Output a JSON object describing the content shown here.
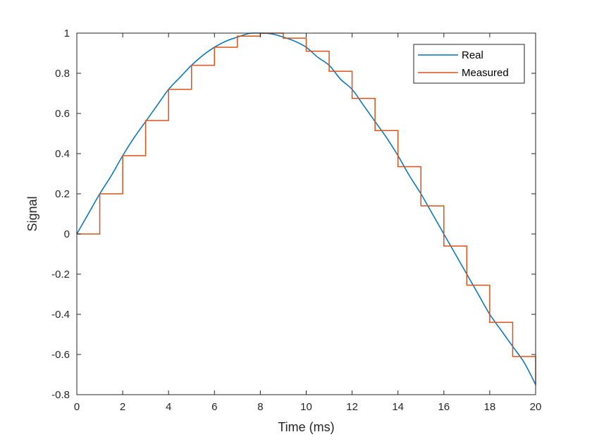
{
  "chart_data": {
    "type": "line",
    "title": "",
    "xlabel": "Time (ms)",
    "ylabel": "Signal",
    "xlim": [
      0,
      20
    ],
    "ylim": [
      -0.8,
      1
    ],
    "xticks": [
      0,
      2,
      4,
      6,
      8,
      10,
      12,
      14,
      16,
      18,
      20
    ],
    "xtick_labels": [
      "0",
      "2",
      "4",
      "6",
      "8",
      "10",
      "12",
      "14",
      "16",
      "18",
      "20"
    ],
    "yticks": [
      -0.8,
      -0.6,
      -0.4,
      -0.2,
      0,
      0.2,
      0.4,
      0.6,
      0.8,
      1
    ],
    "ytick_labels": [
      "-0.8",
      "-0.6",
      "-0.4",
      "-0.2",
      "0",
      "0.2",
      "0.4",
      "0.6",
      "0.8",
      "1"
    ],
    "grid": false,
    "legend_position": "top-right",
    "series": [
      {
        "name": "Real",
        "color": "#0072BD",
        "style": "smooth",
        "x": [
          0,
          0.5,
          1,
          1.5,
          2,
          2.5,
          3,
          3.5,
          4,
          4.5,
          5,
          5.5,
          6,
          6.5,
          7,
          7.5,
          8,
          8.5,
          9,
          9.5,
          10,
          10.5,
          11,
          11.5,
          12,
          12.5,
          13,
          13.5,
          14,
          14.5,
          15,
          15.5,
          16,
          16.5,
          17,
          17.5,
          18,
          18.5,
          19,
          19.5,
          20
        ],
        "y": [
          0,
          0.1,
          0.2,
          0.29,
          0.39,
          0.48,
          0.56,
          0.64,
          0.72,
          0.78,
          0.84,
          0.89,
          0.93,
          0.96,
          0.98,
          0.998,
          1.0,
          0.996,
          0.98,
          0.96,
          0.93,
          0.88,
          0.84,
          0.77,
          0.72,
          0.64,
          0.56,
          0.48,
          0.39,
          0.29,
          0.2,
          0.1,
          0.0,
          -0.1,
          -0.2,
          -0.3,
          -0.4,
          -0.48,
          -0.56,
          -0.64,
          -0.75
        ]
      },
      {
        "name": "Measured",
        "color": "#D95319",
        "style": "step",
        "x": [
          0,
          1,
          2,
          3,
          4,
          5,
          6,
          7,
          8,
          9,
          10,
          11,
          12,
          13,
          14,
          15,
          16,
          17,
          18,
          19,
          20
        ],
        "y": [
          0,
          0.2,
          0.39,
          0.565,
          0.72,
          0.84,
          0.93,
          0.985,
          1.0,
          0.975,
          0.91,
          0.81,
          0.675,
          0.515,
          0.335,
          0.14,
          -0.06,
          -0.255,
          -0.44,
          -0.61,
          -0.755
        ]
      }
    ]
  }
}
